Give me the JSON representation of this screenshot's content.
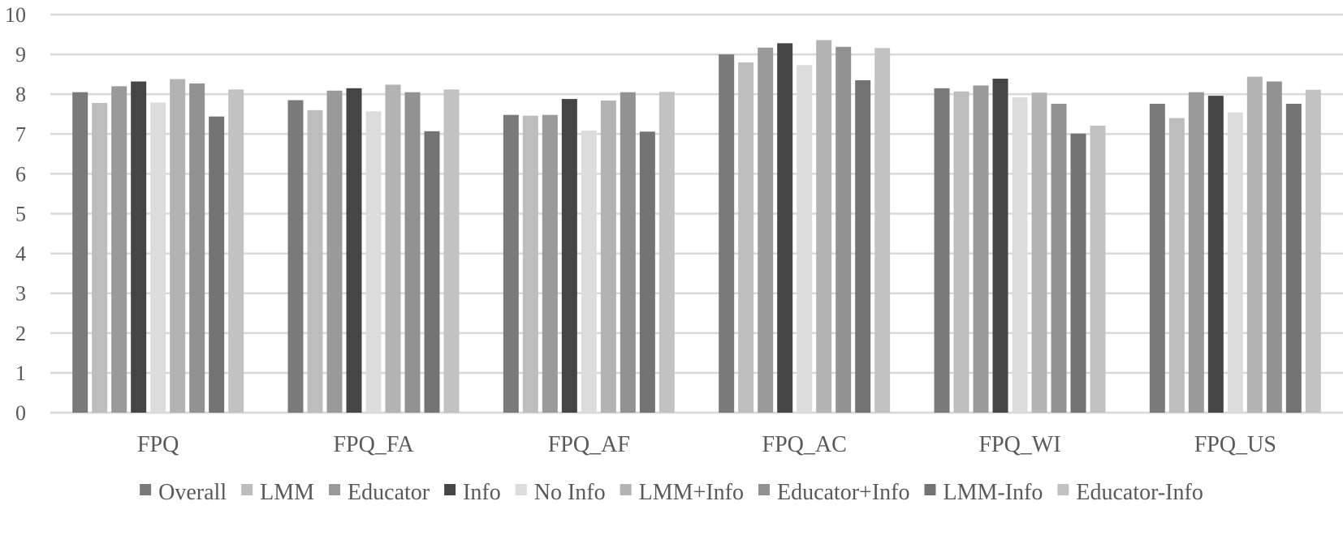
{
  "chart_data": {
    "type": "bar",
    "title": "",
    "xlabel": "",
    "ylabel": "",
    "ylim": [
      0,
      10
    ],
    "yticks": [
      "0",
      "1",
      "2",
      "3",
      "4",
      "5",
      "6",
      "7",
      "8",
      "9",
      "10"
    ],
    "grid": true,
    "legend_position": "bottom",
    "categories": [
      "FPQ",
      "FPQ_FA",
      "FPQ_AF",
      "FPQ_AC",
      "FPQ_WI",
      "FPQ_US"
    ],
    "series": [
      {
        "name": "Overall",
        "color": "#7a7a7a",
        "values": [
          8.05,
          7.85,
          7.48,
          9.0,
          8.15,
          7.76
        ]
      },
      {
        "name": "LMM",
        "color": "#bdbdbd",
        "values": [
          7.78,
          7.6,
          7.46,
          8.8,
          8.07,
          7.4
        ]
      },
      {
        "name": "Educator",
        "color": "#9a9a9a",
        "values": [
          8.2,
          8.09,
          7.48,
          9.17,
          8.22,
          8.05
        ]
      },
      {
        "name": "Info",
        "color": "#454545",
        "values": [
          8.32,
          8.15,
          7.88,
          9.28,
          8.39,
          7.96
        ]
      },
      {
        "name": "No Info",
        "color": "#dcdcdc",
        "values": [
          7.79,
          7.57,
          7.09,
          8.73,
          7.92,
          7.54
        ]
      },
      {
        "name": "LMM+Info",
        "color": "#b3b3b3",
        "values": [
          8.38,
          8.24,
          7.84,
          9.36,
          8.04,
          8.44
        ]
      },
      {
        "name": "Educator+Info",
        "color": "#929292",
        "values": [
          8.27,
          8.05,
          8.05,
          9.19,
          7.76,
          8.32
        ]
      },
      {
        "name": "LMM-Info",
        "color": "#737373",
        "values": [
          7.44,
          7.07,
          7.06,
          8.35,
          7.01,
          7.76
        ]
      },
      {
        "name": "Educator-Info",
        "color": "#c2c2c2",
        "values": [
          8.12,
          8.12,
          8.06,
          9.16,
          7.21,
          8.11
        ]
      }
    ]
  }
}
